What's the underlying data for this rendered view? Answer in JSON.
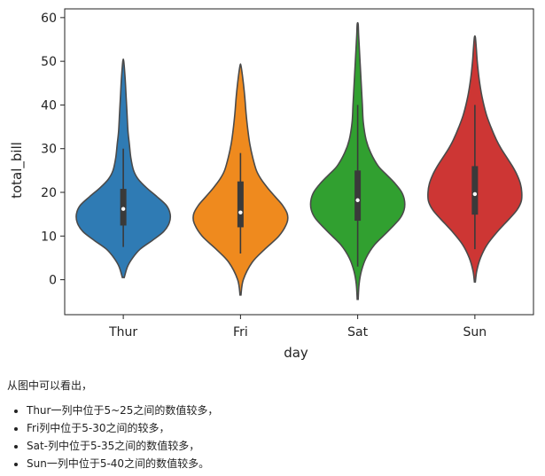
{
  "chart_data": {
    "type": "violin",
    "xlabel": "day",
    "ylabel": "total_bill",
    "categories": [
      "Thur",
      "Fri",
      "Sat",
      "Sun"
    ],
    "ylim": [
      -8,
      62
    ],
    "yticks": [
      0,
      10,
      20,
      30,
      40,
      50,
      60
    ],
    "colors": [
      "#2f7bb4",
      "#ef8a1e",
      "#31a030",
      "#cd3634"
    ],
    "violins": [
      {
        "category": "Thur",
        "min": 0.5,
        "max": 50,
        "q1": 12.4,
        "median": 16.2,
        "q3": 20.8,
        "whisker_low": 7.5,
        "whisker_high": 30,
        "profile": [
          [
            0.5,
            0.02
          ],
          [
            3,
            0.09
          ],
          [
            5,
            0.2
          ],
          [
            7,
            0.36
          ],
          [
            9,
            0.62
          ],
          [
            11,
            0.86
          ],
          [
            13,
            0.98
          ],
          [
            15,
            1.0
          ],
          [
            17,
            0.92
          ],
          [
            19,
            0.72
          ],
          [
            21,
            0.5
          ],
          [
            23,
            0.32
          ],
          [
            25,
            0.22
          ],
          [
            28,
            0.16
          ],
          [
            31,
            0.13
          ],
          [
            34,
            0.1
          ],
          [
            38,
            0.08
          ],
          [
            42,
            0.06
          ],
          [
            46,
            0.04
          ],
          [
            50,
            0.01
          ]
        ]
      },
      {
        "category": "Fri",
        "min": -3.5,
        "max": 49,
        "q1": 12,
        "median": 15.4,
        "q3": 22.5,
        "whisker_low": 6,
        "whisker_high": 29,
        "profile": [
          [
            -3.5,
            0.01
          ],
          [
            0,
            0.06
          ],
          [
            4,
            0.25
          ],
          [
            7,
            0.52
          ],
          [
            10,
            0.82
          ],
          [
            13,
            0.99
          ],
          [
            15,
            1.0
          ],
          [
            17,
            0.9
          ],
          [
            19,
            0.74
          ],
          [
            21,
            0.58
          ],
          [
            23,
            0.44
          ],
          [
            25,
            0.34
          ],
          [
            28,
            0.26
          ],
          [
            31,
            0.2
          ],
          [
            34,
            0.16
          ],
          [
            38,
            0.12
          ],
          [
            42,
            0.09
          ],
          [
            46,
            0.05
          ],
          [
            49,
            0.01
          ]
        ]
      },
      {
        "category": "Sat",
        "min": -4.5,
        "max": 58.5,
        "q1": 13.5,
        "median": 18.2,
        "q3": 25,
        "whisker_low": 3,
        "whisker_high": 40,
        "profile": [
          [
            -4.5,
            0.01
          ],
          [
            -1,
            0.03
          ],
          [
            2,
            0.08
          ],
          [
            5,
            0.18
          ],
          [
            8,
            0.36
          ],
          [
            11,
            0.64
          ],
          [
            14,
            0.9
          ],
          [
            16,
            0.99
          ],
          [
            18,
            1.0
          ],
          [
            20,
            0.94
          ],
          [
            22,
            0.8
          ],
          [
            24,
            0.62
          ],
          [
            26,
            0.44
          ],
          [
            29,
            0.28
          ],
          [
            32,
            0.18
          ],
          [
            36,
            0.12
          ],
          [
            40,
            0.1
          ],
          [
            44,
            0.08
          ],
          [
            48,
            0.06
          ],
          [
            52,
            0.04
          ],
          [
            56,
            0.02
          ],
          [
            58.5,
            0.01
          ]
        ]
      },
      {
        "category": "Sun",
        "min": -0.5,
        "max": 55.5,
        "q1": 14.9,
        "median": 19.6,
        "q3": 26,
        "whisker_low": 7,
        "whisker_high": 40,
        "profile": [
          [
            -0.5,
            0.01
          ],
          [
            2,
            0.04
          ],
          [
            5,
            0.12
          ],
          [
            8,
            0.26
          ],
          [
            11,
            0.48
          ],
          [
            14,
            0.74
          ],
          [
            16,
            0.9
          ],
          [
            18,
            0.99
          ],
          [
            20,
            1.0
          ],
          [
            22,
            0.97
          ],
          [
            24,
            0.9
          ],
          [
            26,
            0.8
          ],
          [
            28,
            0.68
          ],
          [
            30,
            0.56
          ],
          [
            32,
            0.46
          ],
          [
            35,
            0.34
          ],
          [
            38,
            0.24
          ],
          [
            42,
            0.15
          ],
          [
            46,
            0.09
          ],
          [
            50,
            0.05
          ],
          [
            53,
            0.03
          ],
          [
            55.5,
            0.01
          ]
        ]
      }
    ]
  },
  "notes": {
    "intro": "从图中可以看出，",
    "items": [
      "Thur一列中位于5~25之间的数值较多，",
      "Fri列中位于5-30之间的较多，",
      "Sat-列中位于5-35之间的数值较多，",
      "Sun一列中位于5-40之间的数值较多。"
    ]
  }
}
